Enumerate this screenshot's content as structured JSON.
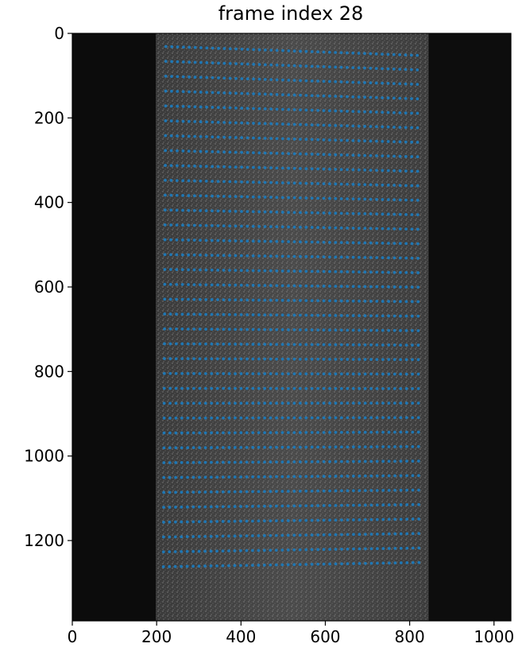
{
  "title": "frame index 28",
  "colors": {
    "marker": "#1f77b4",
    "background": "#ffffff",
    "axis": "#000000"
  },
  "chart_data": {
    "type": "scatter",
    "xlim": [
      0,
      1040
    ],
    "ylim": [
      1390,
      0
    ],
    "x_ticks": [
      "0",
      "200",
      "400",
      "600",
      "800",
      "1000"
    ],
    "y_ticks": [
      "0",
      "200",
      "400",
      "600",
      "800",
      "1000",
      "1200"
    ],
    "specimen": {
      "x_left": 198,
      "x_right": 845
    },
    "grid_points": {
      "rows": 36,
      "y_first_left": 31,
      "y_first_right": 52,
      "y_last_left": 1262,
      "y_last_right": 1252,
      "x_first_top": 222,
      "x_last_top": 818,
      "x_first_bottom": 216,
      "x_last_bottom": 822,
      "points_per_row": 44
    }
  }
}
